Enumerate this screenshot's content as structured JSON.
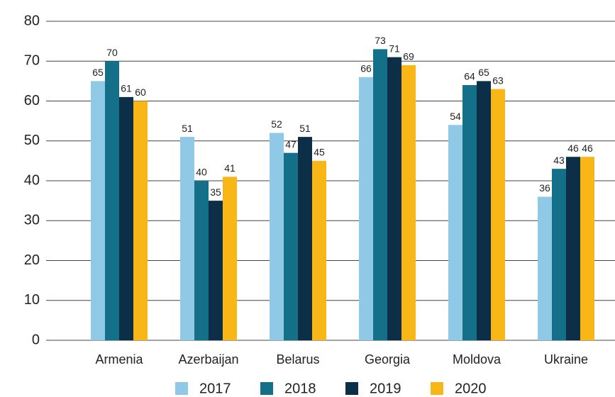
{
  "chart_data": {
    "type": "bar",
    "categories": [
      "Armenia",
      "Azerbaijan",
      "Belarus",
      "Georgia",
      "Moldova",
      "Ukraine"
    ],
    "series": [
      {
        "name": "2017",
        "color": "#90c9e6",
        "values": [
          65,
          51,
          52,
          66,
          54,
          36
        ]
      },
      {
        "name": "2018",
        "color": "#137088",
        "values": [
          70,
          40,
          47,
          73,
          64,
          43
        ]
      },
      {
        "name": "2019",
        "color": "#0c2f47",
        "values": [
          61,
          35,
          51,
          71,
          65,
          46
        ]
      },
      {
        "name": "2020",
        "color": "#f8b617",
        "values": [
          60,
          41,
          45,
          69,
          63,
          46
        ]
      }
    ],
    "ylim": [
      0,
      80
    ],
    "yticks": [
      0,
      10,
      20,
      30,
      40,
      50,
      60,
      70,
      80
    ],
    "grid": true,
    "legend": "bottom"
  }
}
